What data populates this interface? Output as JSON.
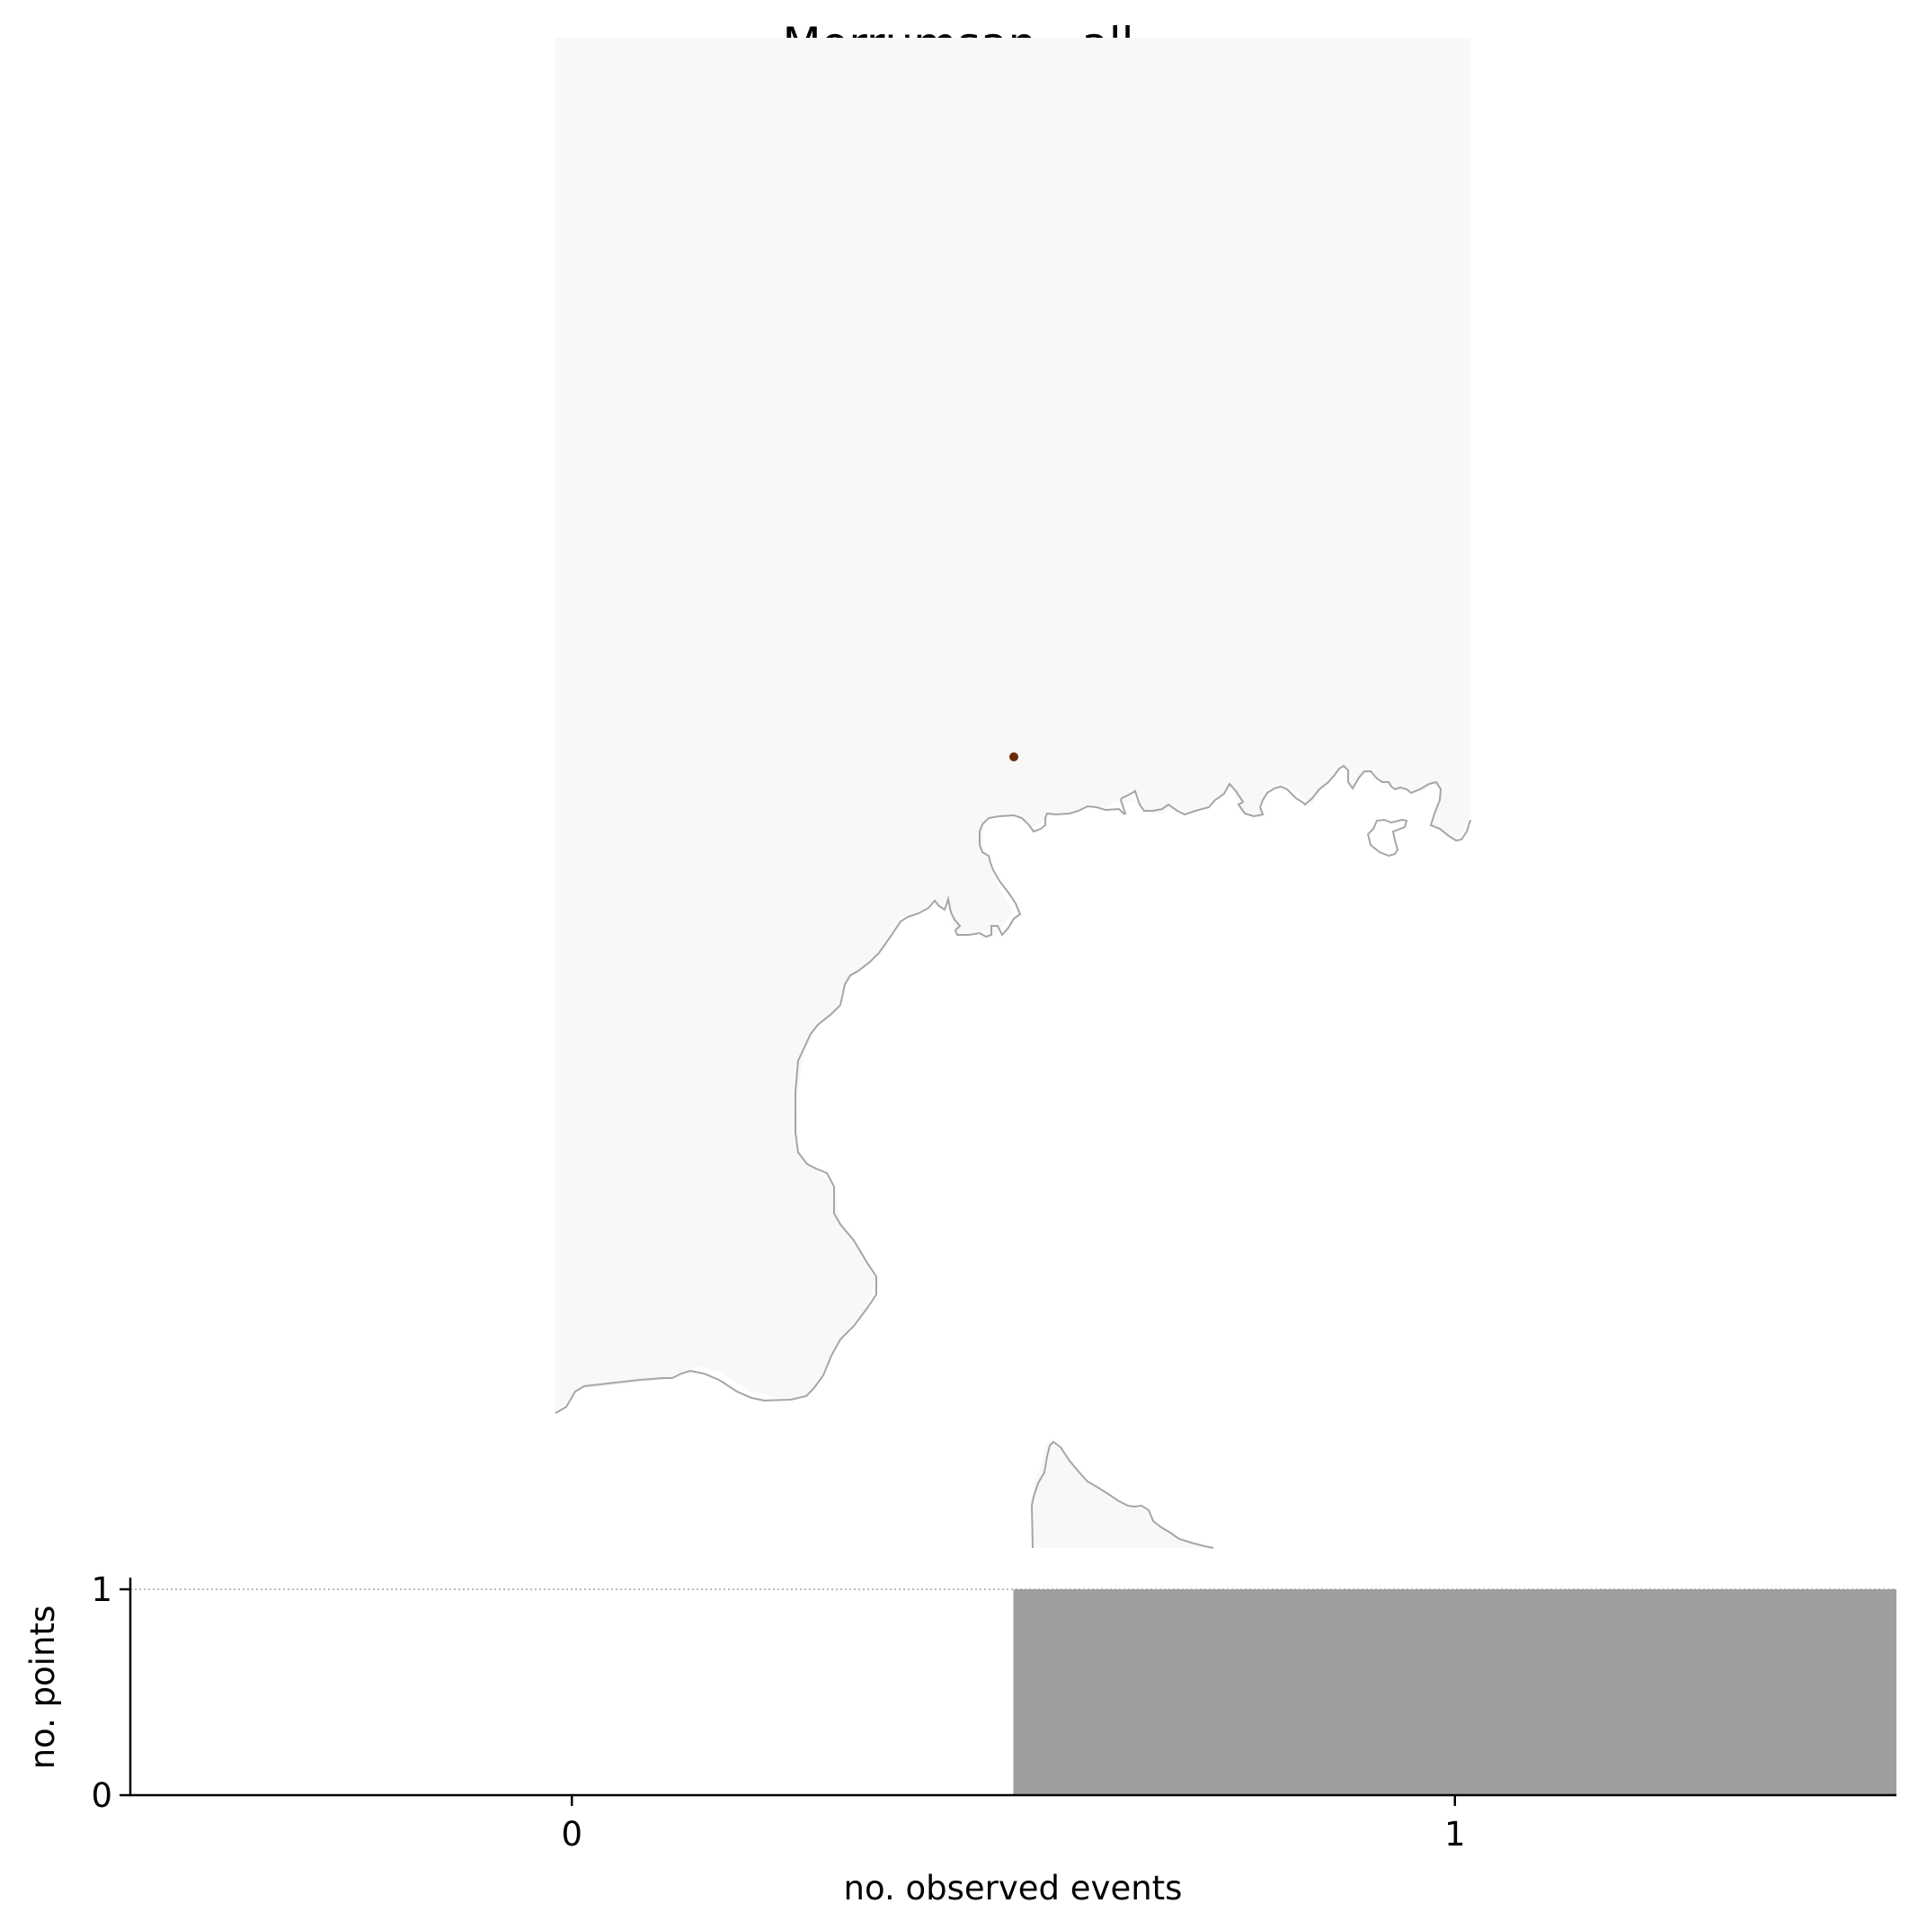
{
  "title": "Morrumsan - all",
  "colors": {
    "land": "#f8f8f8",
    "coast": "#a6a6a6",
    "point": "#6a2c0a",
    "bar": "#9e9e9e",
    "axis": "#000000",
    "refline": "#bbbbbb"
  },
  "map": {
    "points": [
      {
        "label": "",
        "value": 1
      }
    ]
  },
  "chart_data": {
    "type": "bar",
    "categories": [
      "0",
      "1"
    ],
    "values": [
      0,
      1
    ],
    "xlabel": "no. observed events",
    "ylabel": "no. points",
    "ylim": [
      0,
      1
    ],
    "yticks": [
      "0",
      "1"
    ],
    "grid": false,
    "reference_line": 1
  }
}
